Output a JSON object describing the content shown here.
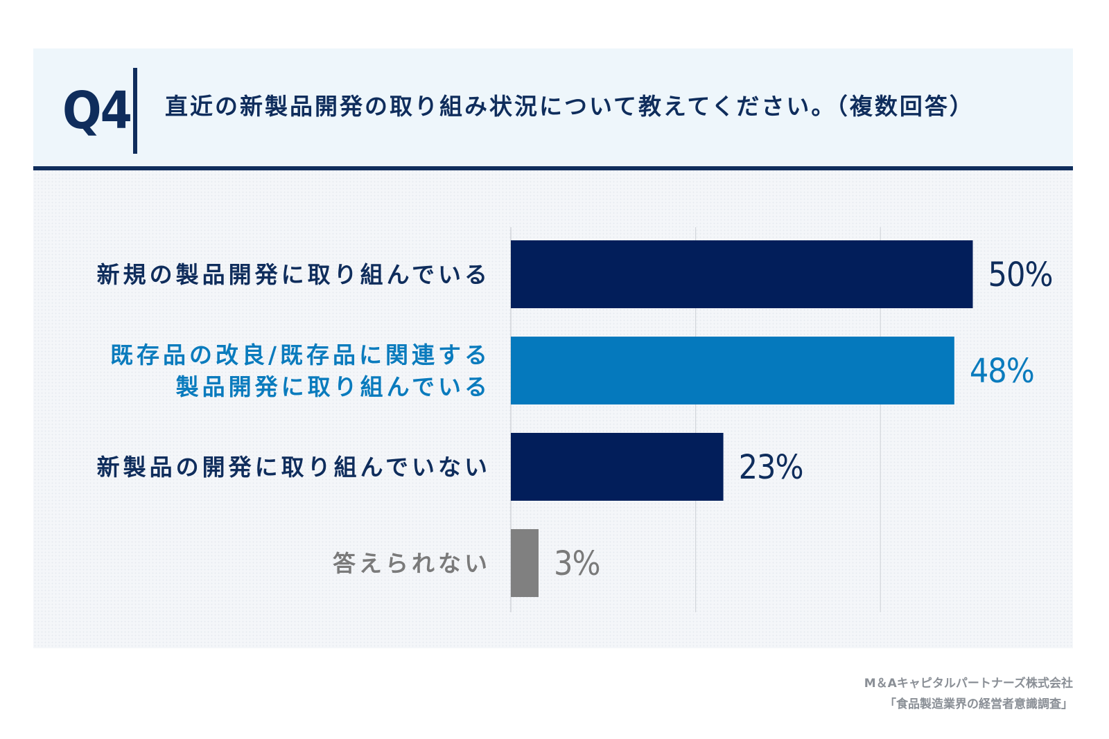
{
  "header": {
    "question_number": "Q4",
    "question_text": "直近の新製品開発の取り組み状況について教えてください。（複数回答）"
  },
  "chart_data": {
    "type": "bar",
    "orientation": "horizontal",
    "categories": [
      [
        "新規の製品開発に取り組んでいる"
      ],
      [
        "既存品の改良/既存品に関連する",
        "製品開発に取り組んでいる"
      ],
      [
        "新製品の開発に取り組んでいない"
      ],
      [
        "答えられない"
      ]
    ],
    "values": [
      50,
      48,
      23,
      3
    ],
    "value_labels": [
      "50%",
      "48%",
      "23%",
      "3%"
    ],
    "bar_colors": [
      "#021e5a",
      "#0579bd",
      "#021e5a",
      "#808080"
    ],
    "label_colors": [
      "#0f2d5c",
      "#0a7bbd",
      "#0f2d5c",
      "#7a7a7a"
    ],
    "xlim": [
      0,
      60
    ],
    "gridlines": [
      20,
      40
    ],
    "grid": true,
    "title": "",
    "xlabel": "",
    "ylabel": ""
  },
  "source": {
    "line1": "M＆Aキャピタルパートナーズ株式会社",
    "line2": "「食品製造業界の経営者意識調査」"
  }
}
